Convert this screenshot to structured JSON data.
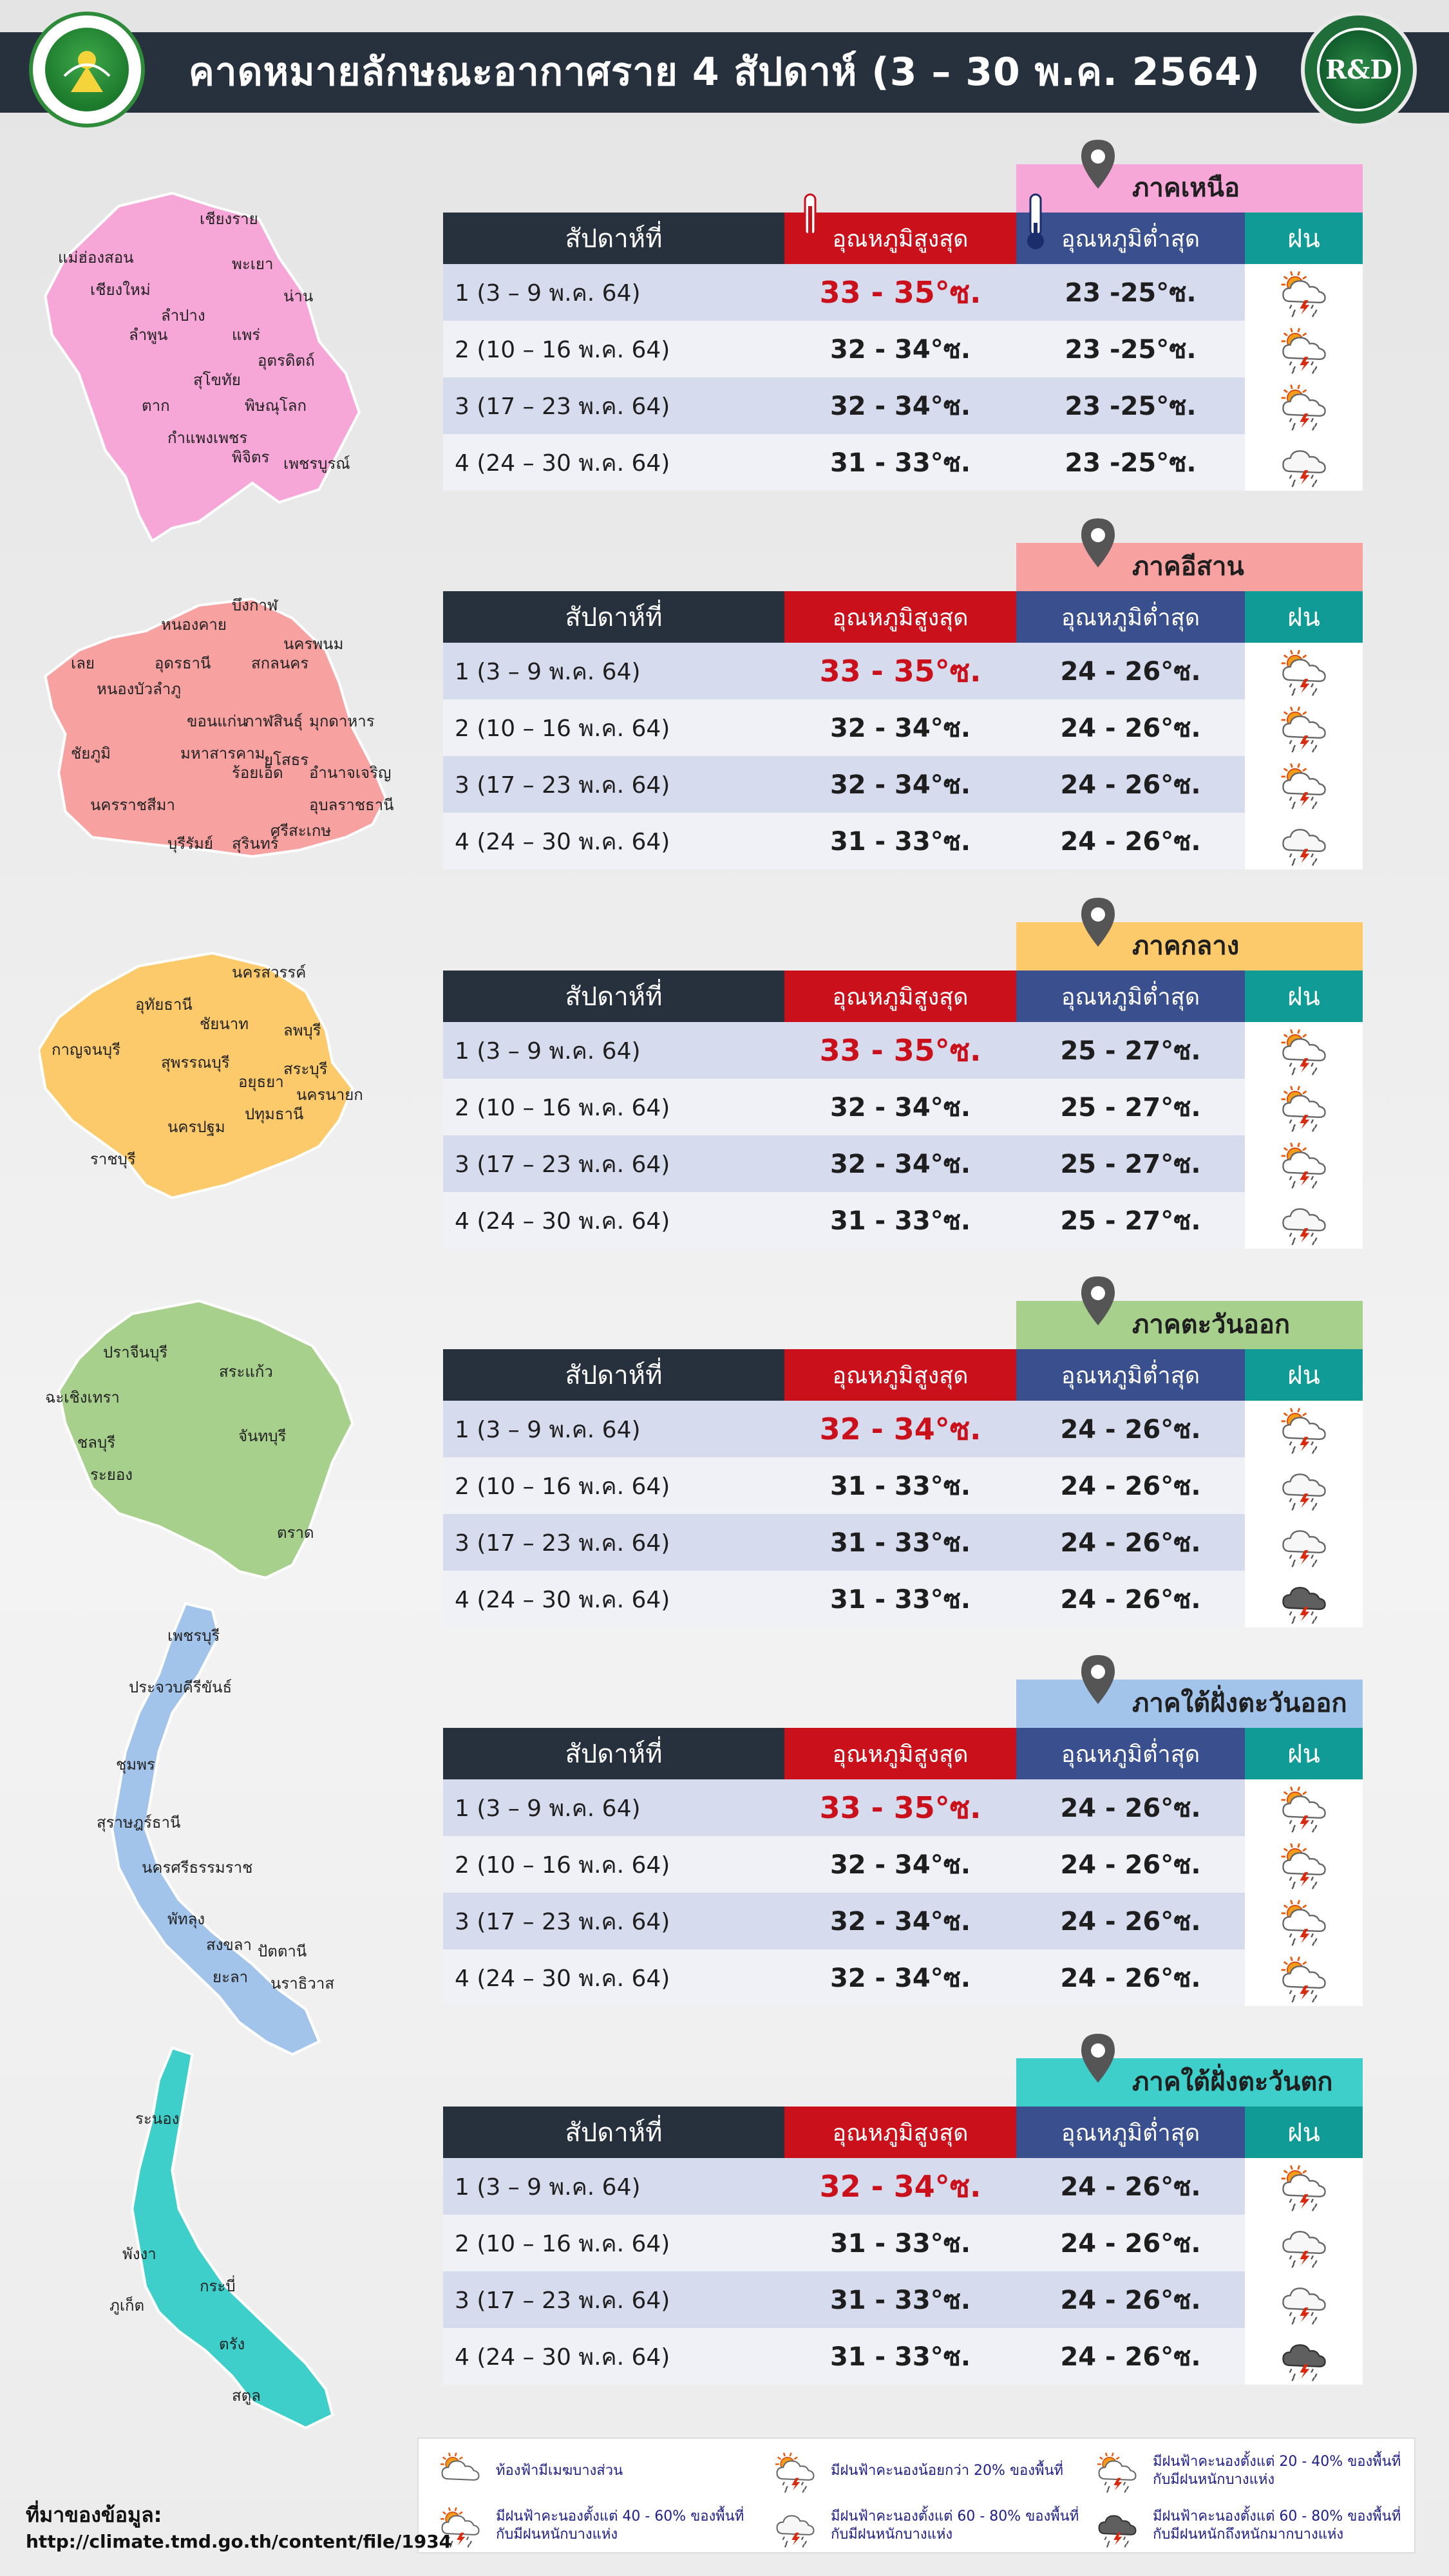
{
  "header": {
    "title": "คาดหมายลักษณะอากาศราย 4 สัปดาห์ (3 – 30 พ.ค. 2564)",
    "logo_left_text": "กรมอุตุนิยมวิทยา",
    "logo_right_text": "R&D"
  },
  "columns": {
    "week": "สัปดาห์ที่",
    "max": "อุณหภูมิสูงสุด",
    "min": "อุณหภูมิต่ำสุด",
    "rain": "ฝน"
  },
  "colors": {
    "north": "#f7a6d8",
    "northeast": "#f7a1a1",
    "central": "#fdca6b",
    "east": "#a8d08d",
    "south_east": "#a3c4ea",
    "south_west": "#3ecfca"
  },
  "regions": [
    {
      "name": "ภาคเหนือ",
      "provinces": [
        "เชียงราย",
        "แม่ฮ่องสอน",
        "พะเยา",
        "เชียงใหม่",
        "น่าน",
        "ลำปาง",
        "ลำพูน",
        "แพร่",
        "อุตรดิตถ์",
        "สุโขทัย",
        "ตาก",
        "พิษณุโลก",
        "กำแพงเพชร",
        "พิจิตร",
        "เพชรบูรณ์"
      ],
      "rows": [
        {
          "week": "1 (3 – 9 พ.ค. 64)",
          "max": "33 - 35°ซ.",
          "min": "23 -25°ซ.",
          "icon": "thunder-sun-icon"
        },
        {
          "week": "2 (10 – 16 พ.ค. 64)",
          "max": "32 - 34°ซ.",
          "min": "23 -25°ซ.",
          "icon": "thunder-sun-icon"
        },
        {
          "week": "3 (17 – 23 พ.ค. 64)",
          "max": "32 - 34°ซ.",
          "min": "23 -25°ซ.",
          "icon": "thunder-sun-icon"
        },
        {
          "week": "4 (24 – 30 พ.ค. 64)",
          "max": "31 - 33°ซ.",
          "min": "23 -25°ซ.",
          "icon": "thunder-cloud-icon"
        }
      ]
    },
    {
      "name": "ภาคอีสาน",
      "provinces": [
        "บึงกาฬ",
        "หนองคาย",
        "นครพนม",
        "เลย",
        "อุดรธานี",
        "สกลนคร",
        "หนองบัวลำภู",
        "ขอนแก่น",
        "กาฬสินธุ์",
        "มุกดาหาร",
        "ชัยภูมิ",
        "มหาสารคาม",
        "ยโสธร",
        "ร้อยเอ็ด",
        "อำนาจเจริญ",
        "นครราชสีมา",
        "อุบลราชธานี",
        "ศรีสะเกษ",
        "บุรีรัมย์",
        "สุรินทร์"
      ],
      "rows": [
        {
          "week": "1 (3 – 9 พ.ค. 64)",
          "max": "33 - 35°ซ.",
          "min": "24 - 26°ซ.",
          "icon": "thunder-sun-icon"
        },
        {
          "week": "2 (10 – 16 พ.ค. 64)",
          "max": "32 - 34°ซ.",
          "min": "24 - 26°ซ.",
          "icon": "thunder-sun-icon"
        },
        {
          "week": "3 (17 – 23 พ.ค. 64)",
          "max": "32 - 34°ซ.",
          "min": "24 - 26°ซ.",
          "icon": "thunder-sun-icon"
        },
        {
          "week": "4 (24 – 30 พ.ค. 64)",
          "max": "31 - 33°ซ.",
          "min": "24 - 26°ซ.",
          "icon": "thunder-cloud-icon"
        }
      ]
    },
    {
      "name": "ภาคกลาง",
      "provinces": [
        "นครสวรรค์",
        "อุทัยธานี",
        "ชัยนาท",
        "ลพบุรี",
        "กาญจนบุรี",
        "สุพรรณบุรี",
        "สระบุรี",
        "อยุธยา",
        "นครนายก",
        "ปทุมธานี",
        "นครปฐม",
        "ราชบุรี"
      ],
      "rows": [
        {
          "week": "1 (3 – 9 พ.ค. 64)",
          "max": "33 - 35°ซ.",
          "min": "25 - 27°ซ.",
          "icon": "thunder-sun-icon"
        },
        {
          "week": "2 (10 – 16 พ.ค. 64)",
          "max": "32 - 34°ซ.",
          "min": "25 - 27°ซ.",
          "icon": "thunder-sun-icon"
        },
        {
          "week": "3 (17 – 23 พ.ค. 64)",
          "max": "32 - 34°ซ.",
          "min": "25 - 27°ซ.",
          "icon": "thunder-sun-icon"
        },
        {
          "week": "4 (24 – 30 พ.ค. 64)",
          "max": "31 - 33°ซ.",
          "min": "25 - 27°ซ.",
          "icon": "thunder-cloud-icon"
        }
      ]
    },
    {
      "name": "ภาคตะวันออก",
      "provinces": [
        "ปราจีนบุรี",
        "สระแก้ว",
        "ฉะเชิงเทรา",
        "ชลบุรี",
        "จันทบุรี",
        "ระยอง",
        "ตราด"
      ],
      "rows": [
        {
          "week": "1 (3 – 9 พ.ค. 64)",
          "max": "32 - 34°ซ.",
          "min": "24 - 26°ซ.",
          "icon": "thunder-sun-icon"
        },
        {
          "week": "2 (10 – 16 พ.ค. 64)",
          "max": "31 - 33°ซ.",
          "min": "24 - 26°ซ.",
          "icon": "thunder-cloud-icon"
        },
        {
          "week": "3 (17 – 23 พ.ค. 64)",
          "max": "31 - 33°ซ.",
          "min": "24 - 26°ซ.",
          "icon": "thunder-cloud-icon"
        },
        {
          "week": "4 (24 – 30 พ.ค. 64)",
          "max": "31 - 33°ซ.",
          "min": "24 - 26°ซ.",
          "icon": "heavy-thunder-cloud-icon"
        }
      ]
    },
    {
      "name": "ภาคใต้ฝั่งตะวันออก",
      "provinces": [
        "เพชรบุรี",
        "ประจวบคีรีขันธ์",
        "ชุมพร",
        "สุราษฎร์ธานี",
        "นครศรีธรรมราช",
        "พัทลุง",
        "สงขลา",
        "ปัตตานี",
        "ยะลา",
        "นราธิวาส"
      ],
      "rows": [
        {
          "week": "1 (3 – 9 พ.ค. 64)",
          "max": "33 - 35°ซ.",
          "min": "24 - 26°ซ.",
          "icon": "thunder-sun-icon"
        },
        {
          "week": "2 (10 – 16 พ.ค. 64)",
          "max": "32 - 34°ซ.",
          "min": "24 - 26°ซ.",
          "icon": "thunder-sun-icon"
        },
        {
          "week": "3 (17 – 23 พ.ค. 64)",
          "max": "32 - 34°ซ.",
          "min": "24 - 26°ซ.",
          "icon": "thunder-sun-icon"
        },
        {
          "week": "4 (24 – 30 พ.ค. 64)",
          "max": "32 - 34°ซ.",
          "min": "24 - 26°ซ.",
          "icon": "thunder-sun-icon"
        }
      ]
    },
    {
      "name": "ภาคใต้ฝั่งตะวันตก",
      "provinces": [
        "ระนอง",
        "พังงา",
        "กระบี่",
        "ภูเก็ต",
        "ตรัง",
        "สตูล"
      ],
      "rows": [
        {
          "week": "1 (3 – 9 พ.ค. 64)",
          "max": "32 - 34°ซ.",
          "min": "24 - 26°ซ.",
          "icon": "thunder-sun-icon"
        },
        {
          "week": "2 (10 – 16 พ.ค. 64)",
          "max": "31 - 33°ซ.",
          "min": "24 - 26°ซ.",
          "icon": "thunder-cloud-icon"
        },
        {
          "week": "3 (17 – 23 พ.ค. 64)",
          "max": "31 - 33°ซ.",
          "min": "24 - 26°ซ.",
          "icon": "thunder-cloud-icon"
        },
        {
          "week": "4 (24 – 30 พ.ค. 64)",
          "max": "31 - 33°ซ.",
          "min": "24 - 26°ซ.",
          "icon": "heavy-thunder-cloud-icon"
        }
      ]
    }
  ],
  "legend": [
    {
      "icon": "sun-cloud-icon",
      "text": "ท้องฟ้ามีเมฆบางส่วน"
    },
    {
      "icon": "thunder-sun-small-icon",
      "text": "มีฝนฟ้าคะนองน้อยกว่า 20% ของพื้นที่"
    },
    {
      "icon": "thunder-sun-icon",
      "text": "มีฝนฟ้าคะนองตั้งแต่ 20 - 40% ของพื้นที่ กับมีฝนหนักบางแห่ง"
    },
    {
      "icon": "thunder-sun-heavy-icon",
      "text": "มีฝนฟ้าคะนองตั้งแต่ 40 - 60% ของพื้นที่ กับมีฝนหนักบางแห่ง"
    },
    {
      "icon": "thunder-cloud-icon",
      "text": "มีฝนฟ้าคะนองตั้งแต่ 60 - 80% ของพื้นที่กับมีฝนหนักบางแห่ง"
    },
    {
      "icon": "heavy-thunder-cloud-icon",
      "text": "มีฝนฟ้าคะนองตั้งแต่ 60 - 80% ของพื้นที่ กับมีฝนหนักถึงหนักมากบางแห่ง"
    }
  ],
  "source": {
    "label": "ที่มาของข้อมูล:",
    "url": "http://climate.tmd.go.th/content/file/1934"
  }
}
